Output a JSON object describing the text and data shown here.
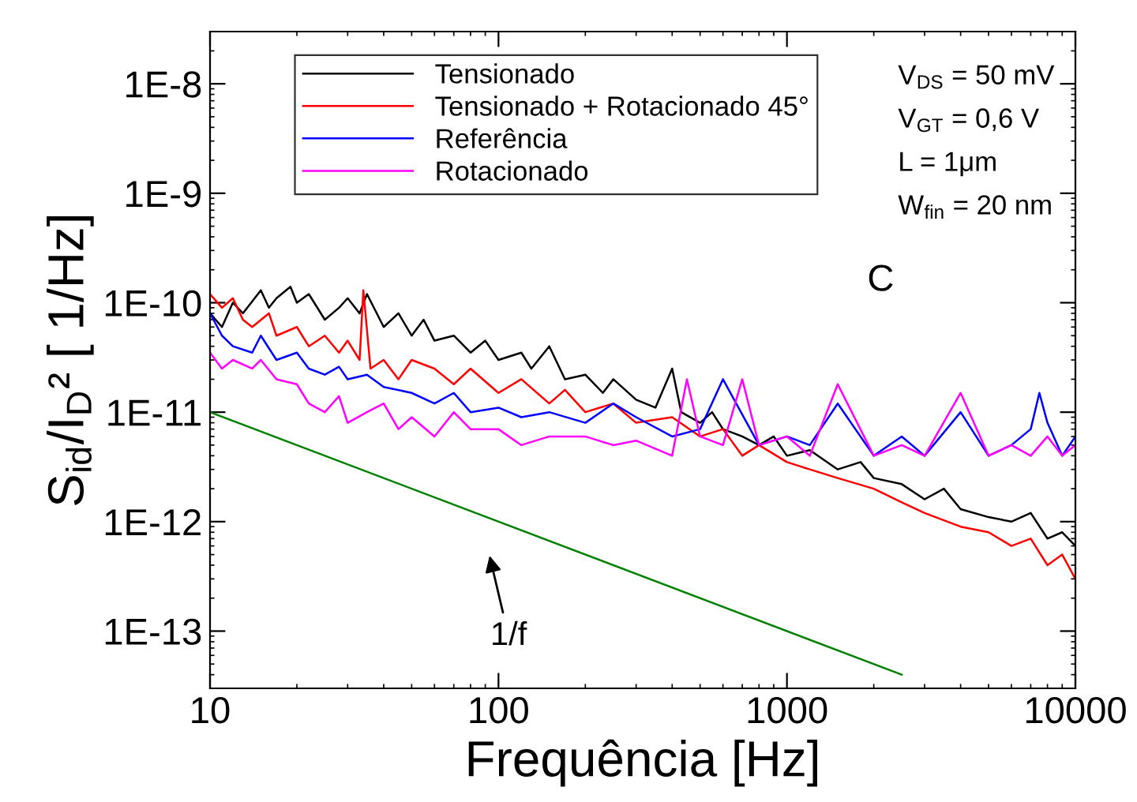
{
  "chart_data": {
    "type": "line",
    "xlabel": "Frequência [Hz]",
    "ylabel": "S$_{id}$/I$_{D}$² [ 1/Hz]",
    "log": "xy",
    "xlim": [
      10,
      10000
    ],
    "ylim": [
      3e-14,
      3e-08
    ],
    "xticks": [
      10,
      100,
      1000,
      10000
    ],
    "yticks": [
      {
        "value": 1e-13,
        "label": "1E-13"
      },
      {
        "value": 1e-12,
        "label": "1E-12"
      },
      {
        "value": 1e-11,
        "label": "1E-11"
      },
      {
        "value": 1e-10,
        "label": "1E-10"
      },
      {
        "value": 1e-09,
        "label": "1E-9"
      },
      {
        "value": 1e-08,
        "label": "1E-8"
      }
    ],
    "grid": false,
    "legend": "top",
    "marker": "none",
    "line_style": "solid",
    "series": [
      {
        "name": "Tensionado",
        "color": "#000000",
        "x": [
          10,
          11,
          12,
          13,
          15,
          16,
          17,
          19,
          20,
          22,
          25,
          28,
          30,
          33,
          35,
          40,
          45,
          50,
          55,
          60,
          70,
          80,
          90,
          100,
          120,
          130,
          150,
          170,
          200,
          230,
          250,
          300,
          350,
          400,
          430,
          500,
          550,
          600,
          700,
          800,
          900,
          1000,
          1200,
          1500,
          1800,
          2000,
          2500,
          3000,
          3500,
          4000,
          5000,
          6000,
          7000,
          8000,
          9000,
          10000
        ],
        "values": [
          8e-11,
          6e-11,
          1e-10,
          8e-11,
          1.3e-10,
          9e-11,
          1.1e-10,
          1.4e-10,
          1e-10,
          1.2e-10,
          7e-11,
          9e-11,
          1.1e-10,
          8e-11,
          1.2e-10,
          6e-11,
          8e-11,
          5e-11,
          7e-11,
          4.5e-11,
          5e-11,
          3.5e-11,
          4.5e-11,
          3e-11,
          3.5e-11,
          2.5e-11,
          4e-11,
          2e-11,
          2.2e-11,
          1.5e-11,
          2e-11,
          1.3e-11,
          1.1e-11,
          2.5e-11,
          1e-11,
          8e-12,
          1e-11,
          7e-12,
          6e-12,
          5e-12,
          6e-12,
          4e-12,
          4.5e-12,
          3e-12,
          3.5e-12,
          2.5e-12,
          2.2e-12,
          1.6e-12,
          2e-12,
          1.3e-12,
          1.1e-12,
          1e-12,
          1.2e-12,
          7e-13,
          8e-13,
          6e-13
        ]
      },
      {
        "name": "Tensionado + Rotacionado 45°",
        "color": "#ff0000",
        "x": [
          10,
          11,
          12,
          13,
          14,
          16,
          17,
          20,
          22,
          25,
          28,
          30,
          33,
          34,
          36,
          40,
          45,
          50,
          60,
          70,
          80,
          100,
          120,
          150,
          170,
          200,
          250,
          300,
          400,
          500,
          600,
          700,
          800,
          1000,
          1200,
          1500,
          2000,
          2500,
          3000,
          4000,
          5000,
          6000,
          7000,
          8000,
          9000,
          10000
        ],
        "values": [
          1.2e-10,
          9e-11,
          1.1e-10,
          7e-11,
          6e-11,
          8e-11,
          5e-11,
          6e-11,
          4e-11,
          5e-11,
          3.5e-11,
          4.5e-11,
          3e-11,
          1.3e-10,
          2.5e-11,
          3e-11,
          2e-11,
          3e-11,
          2.5e-11,
          1.8e-11,
          2.5e-11,
          1.5e-11,
          2e-11,
          1.2e-11,
          1.6e-11,
          1e-11,
          1.2e-11,
          8e-12,
          9e-12,
          6e-12,
          7e-12,
          4e-12,
          5e-12,
          3.5e-12,
          3e-12,
          2.5e-12,
          2e-12,
          1.5e-12,
          1.2e-12,
          9e-13,
          8e-13,
          6e-13,
          7e-13,
          4e-13,
          5e-13,
          3e-13
        ]
      },
      {
        "name": "Referência",
        "color": "#0000ff",
        "x": [
          10,
          11,
          12,
          14,
          15,
          17,
          20,
          22,
          25,
          28,
          30,
          35,
          40,
          50,
          60,
          70,
          80,
          100,
          120,
          150,
          200,
          250,
          300,
          400,
          500,
          600,
          800,
          1000,
          1200,
          1500,
          2000,
          2500,
          3000,
          4000,
          5000,
          6000,
          7000,
          7500,
          8000,
          9000,
          10000
        ],
        "values": [
          8e-11,
          5e-11,
          4e-11,
          3.5e-11,
          5e-11,
          3e-11,
          3.5e-11,
          2.5e-11,
          2.2e-11,
          2.6e-11,
          2e-11,
          2.2e-11,
          1.7e-11,
          1.5e-11,
          1.2e-11,
          1.5e-11,
          1e-11,
          1.1e-11,
          9e-12,
          1e-11,
          8e-12,
          1.2e-11,
          9e-12,
          6e-12,
          7e-12,
          2e-11,
          5e-12,
          6e-12,
          5e-12,
          1.2e-11,
          4e-12,
          6e-12,
          4e-12,
          1e-11,
          4e-12,
          5e-12,
          7e-12,
          1.5e-11,
          8e-12,
          4e-12,
          6e-12
        ]
      },
      {
        "name": "Rotacionado",
        "color": "#ff00ff",
        "x": [
          10,
          11,
          12,
          14,
          15,
          17,
          20,
          22,
          25,
          28,
          30,
          35,
          40,
          45,
          50,
          60,
          70,
          80,
          100,
          120,
          150,
          200,
          250,
          300,
          400,
          450,
          500,
          600,
          700,
          800,
          1000,
          1200,
          1500,
          2000,
          2500,
          3000,
          4000,
          5000,
          6000,
          7000,
          8000,
          9000,
          10000
        ],
        "values": [
          3.5e-11,
          2.5e-11,
          3e-11,
          2.5e-11,
          3e-11,
          2e-11,
          1.8e-11,
          1.2e-11,
          1e-11,
          1.4e-11,
          8e-12,
          1e-11,
          1.2e-11,
          7e-12,
          9e-12,
          6e-12,
          1e-11,
          7e-12,
          7e-12,
          5e-12,
          6e-12,
          6e-12,
          5e-12,
          5.5e-12,
          4e-12,
          2e-11,
          6e-12,
          5e-12,
          2e-11,
          5e-12,
          6e-12,
          4e-12,
          1.8e-11,
          4e-12,
          5e-12,
          4e-12,
          1.5e-11,
          4e-12,
          5e-12,
          4e-12,
          6e-12,
          4e-12,
          5e-12
        ]
      },
      {
        "color": "#008000",
        "x": [
          10,
          2500
        ],
        "values": [
          1e-11,
          4e-14
        ]
      }
    ],
    "annotations": [
      "V$_{DS}$ = 50 mV",
      "V$_{GT}$ = 0,6 V",
      "L = 1μm",
      "W$_{fin}$ = 20 nm",
      "C",
      "1/f"
    ]
  }
}
